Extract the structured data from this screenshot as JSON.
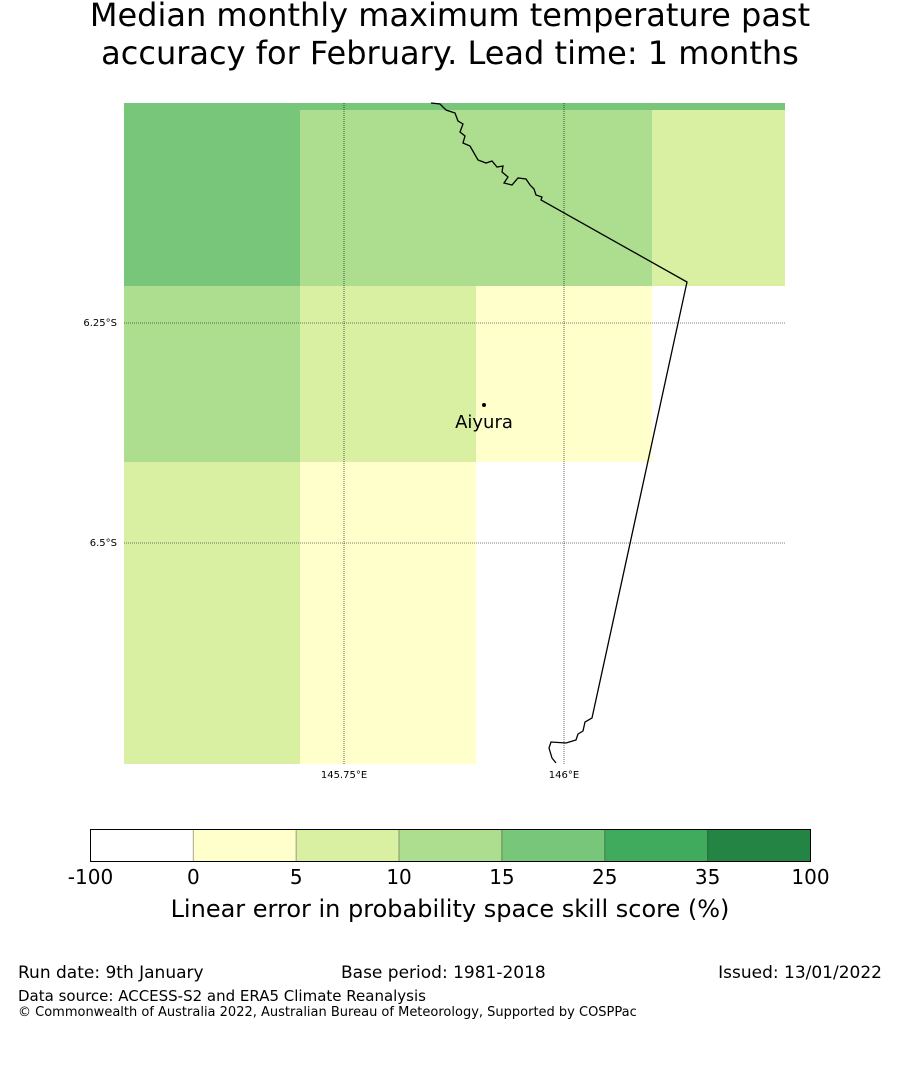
{
  "title_line1": "Median monthly maximum temperature past",
  "title_line2": "accuracy for February. Lead time: 1 months",
  "map": {
    "lat_ticks": [
      "6.25°S",
      "6.5°S"
    ],
    "lon_ticks": [
      "145.75°E",
      "146°E"
    ],
    "place": "Aiyura"
  },
  "colorbar": {
    "bounds": [
      "-100",
      "0",
      "5",
      "10",
      "15",
      "25",
      "35",
      "100"
    ],
    "colors": [
      "#ffffff",
      "#ffffcc",
      "#d9f0a3",
      "#addd8e",
      "#78c679",
      "#41ab5d",
      "#238443"
    ],
    "label": "Linear error in probability space skill score (%)"
  },
  "footer": {
    "run_date": "Run date: 9th January",
    "base_period": "Base period: 1981-2018",
    "issued": "Issued: 13/01/2022",
    "source": "Data source: ACCESS-S2 and ERA5 Climate Reanalysis",
    "copyright": "© Commonwealth of Australia 2022, Australian Bureau of Meteorology, Supported by COSPPac"
  }
}
